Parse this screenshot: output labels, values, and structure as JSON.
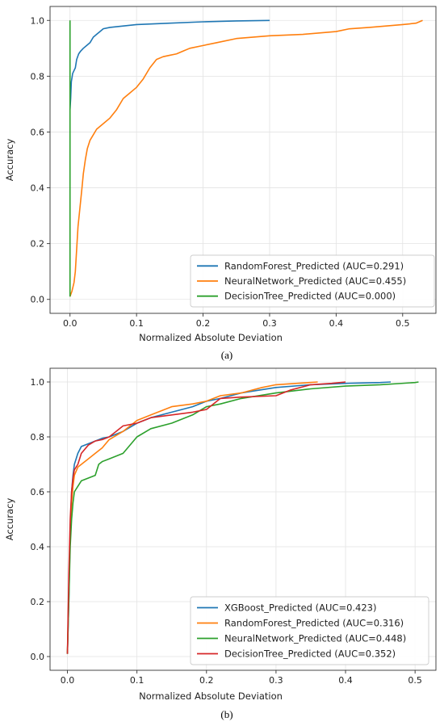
{
  "chart_data": [
    {
      "type": "line",
      "caption": "(a)",
      "xlabel": "Normalized Absolute Deviation",
      "ylabel": "Accuracy",
      "xlim": [
        -0.03,
        0.55
      ],
      "ylim": [
        -0.05,
        1.05
      ],
      "xticks": [
        "0.0",
        "0.1",
        "0.2",
        "0.3",
        "0.4",
        "0.5"
      ],
      "yticks": [
        "0.0",
        "0.2",
        "0.4",
        "0.6",
        "0.8",
        "1.0"
      ],
      "grid": true,
      "legend_position": "lower-right",
      "series": [
        {
          "name": "RandomForest_Predicted (AUC=0.291)",
          "color": "#1f77b4",
          "x": [
            0.0,
            0.001,
            0.002,
            0.004,
            0.006,
            0.008,
            0.01,
            0.013,
            0.016,
            0.02,
            0.025,
            0.03,
            0.035,
            0.04,
            0.045,
            0.05,
            0.06,
            0.08,
            0.1,
            0.15,
            0.2,
            0.25,
            0.3
          ],
          "y": [
            0.68,
            0.72,
            0.78,
            0.81,
            0.82,
            0.83,
            0.86,
            0.88,
            0.89,
            0.9,
            0.91,
            0.92,
            0.94,
            0.95,
            0.96,
            0.97,
            0.975,
            0.98,
            0.985,
            0.99,
            0.995,
            0.998,
            1.0
          ]
        },
        {
          "name": "NeuralNetwork_Predicted (AUC=0.455)",
          "color": "#ff7f0e",
          "x": [
            0.0,
            0.003,
            0.006,
            0.008,
            0.01,
            0.012,
            0.015,
            0.018,
            0.02,
            0.023,
            0.026,
            0.03,
            0.035,
            0.04,
            0.05,
            0.06,
            0.07,
            0.08,
            0.09,
            0.1,
            0.11,
            0.12,
            0.13,
            0.14,
            0.15,
            0.16,
            0.17,
            0.18,
            0.2,
            0.22,
            0.25,
            0.3,
            0.35,
            0.4,
            0.42,
            0.45,
            0.5,
            0.52,
            0.53
          ],
          "y": [
            0.01,
            0.03,
            0.06,
            0.1,
            0.18,
            0.26,
            0.33,
            0.4,
            0.45,
            0.5,
            0.54,
            0.57,
            0.59,
            0.61,
            0.63,
            0.65,
            0.68,
            0.72,
            0.74,
            0.76,
            0.79,
            0.83,
            0.86,
            0.87,
            0.875,
            0.88,
            0.89,
            0.9,
            0.91,
            0.92,
            0.935,
            0.945,
            0.95,
            0.96,
            0.97,
            0.975,
            0.985,
            0.99,
            1.0
          ]
        },
        {
          "name": "DecisionTree_Predicted (AUC=0.000)",
          "color": "#2ca02c",
          "x": [
            0.0,
            0.0
          ],
          "y": [
            0.01,
            1.0
          ]
        }
      ]
    },
    {
      "type": "line",
      "caption": "(b)",
      "xlabel": "Normalized Absolute Deviation",
      "ylabel": "Accuracy",
      "xlim": [
        -0.025,
        0.53
      ],
      "ylim": [
        -0.05,
        1.05
      ],
      "xticks": [
        "0.0",
        "0.1",
        "0.2",
        "0.3",
        "0.4",
        "0.5"
      ],
      "yticks": [
        "0.0",
        "0.2",
        "0.4",
        "0.6",
        "0.8",
        "1.0"
      ],
      "grid": true,
      "legend_position": "lower-right",
      "series": [
        {
          "name": "XGBoost_Predicted (AUC=0.423)",
          "color": "#1f77b4",
          "x": [
            0.0,
            0.002,
            0.004,
            0.006,
            0.008,
            0.01,
            0.015,
            0.02,
            0.03,
            0.04,
            0.05,
            0.06,
            0.08,
            0.1,
            0.12,
            0.15,
            0.18,
            0.2,
            0.22,
            0.25,
            0.3,
            0.35,
            0.4,
            0.45,
            0.465
          ],
          "y": [
            0.01,
            0.2,
            0.45,
            0.6,
            0.66,
            0.7,
            0.74,
            0.765,
            0.775,
            0.785,
            0.795,
            0.8,
            0.82,
            0.85,
            0.87,
            0.89,
            0.91,
            0.93,
            0.94,
            0.96,
            0.98,
            0.99,
            0.995,
            0.998,
            1.0
          ]
        },
        {
          "name": "RandomForest_Predicted (AUC=0.316)",
          "color": "#ff7f0e",
          "x": [
            0.0,
            0.002,
            0.004,
            0.006,
            0.008,
            0.01,
            0.015,
            0.02,
            0.03,
            0.04,
            0.05,
            0.06,
            0.08,
            0.1,
            0.12,
            0.15,
            0.18,
            0.2,
            0.22,
            0.25,
            0.28,
            0.3,
            0.33,
            0.36
          ],
          "y": [
            0.01,
            0.25,
            0.45,
            0.56,
            0.62,
            0.66,
            0.69,
            0.7,
            0.72,
            0.74,
            0.76,
            0.79,
            0.82,
            0.86,
            0.88,
            0.91,
            0.92,
            0.93,
            0.95,
            0.96,
            0.98,
            0.99,
            0.995,
            1.0
          ]
        },
        {
          "name": "NeuralNetwork_Predicted (AUC=0.448)",
          "color": "#2ca02c",
          "x": [
            0.0,
            0.002,
            0.004,
            0.006,
            0.008,
            0.01,
            0.015,
            0.02,
            0.03,
            0.04,
            0.045,
            0.05,
            0.06,
            0.08,
            0.1,
            0.12,
            0.15,
            0.18,
            0.2,
            0.22,
            0.25,
            0.3,
            0.35,
            0.4,
            0.45,
            0.5,
            0.505
          ],
          "y": [
            0.01,
            0.2,
            0.4,
            0.5,
            0.56,
            0.6,
            0.62,
            0.64,
            0.65,
            0.66,
            0.7,
            0.71,
            0.72,
            0.74,
            0.8,
            0.83,
            0.85,
            0.88,
            0.91,
            0.92,
            0.94,
            0.96,
            0.975,
            0.985,
            0.99,
            0.998,
            1.0
          ]
        },
        {
          "name": "DecisionTree_Predicted (AUC=0.352)",
          "color": "#d62728",
          "x": [
            0.0,
            0.002,
            0.004,
            0.006,
            0.008,
            0.01,
            0.015,
            0.02,
            0.03,
            0.04,
            0.05,
            0.06,
            0.07,
            0.08,
            0.1,
            0.12,
            0.15,
            0.18,
            0.2,
            0.22,
            0.25,
            0.3,
            0.32,
            0.35,
            0.38,
            0.4
          ],
          "y": [
            0.01,
            0.3,
            0.5,
            0.6,
            0.65,
            0.68,
            0.7,
            0.74,
            0.77,
            0.785,
            0.79,
            0.8,
            0.82,
            0.84,
            0.85,
            0.87,
            0.88,
            0.89,
            0.9,
            0.94,
            0.945,
            0.95,
            0.97,
            0.99,
            0.995,
            1.0
          ]
        }
      ]
    }
  ]
}
